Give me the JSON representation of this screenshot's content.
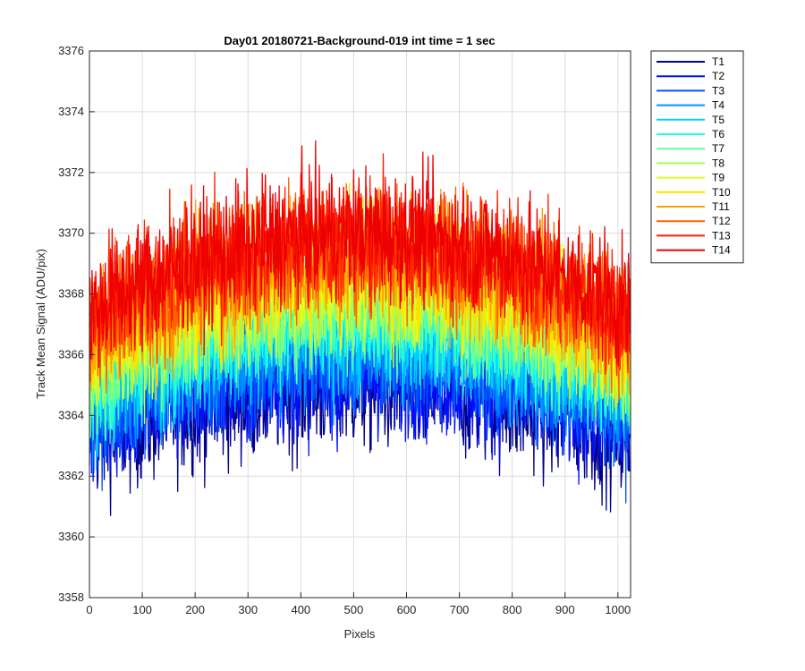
{
  "chart_data": {
    "type": "line",
    "title": "Day01 20180721-Background-019 int time = 1 sec",
    "xlabel": "Pixels",
    "ylabel": "Track Mean Signal (ADU/pix)",
    "xlim": [
      0,
      1024
    ],
    "ylim": [
      3358,
      3376
    ],
    "xticks": [
      0,
      100,
      200,
      300,
      400,
      500,
      600,
      700,
      800,
      900,
      1000
    ],
    "yticks": [
      3358,
      3360,
      3362,
      3364,
      3366,
      3368,
      3370,
      3372,
      3374,
      3376
    ],
    "grid": true,
    "legend_position": "outside-top-right",
    "x_sampling": {
      "start": 0,
      "end": 1023,
      "points": 1024
    },
    "series": [
      {
        "name": "T1",
        "color": "#00008f",
        "edge": 3363.2,
        "center": 3364.9,
        "noise": 1.5
      },
      {
        "name": "T2",
        "color": "#0010ff",
        "edge": 3363.6,
        "center": 3365.3,
        "noise": 1.4
      },
      {
        "name": "T3",
        "color": "#0050ff",
        "edge": 3364.0,
        "center": 3365.8,
        "noise": 1.4
      },
      {
        "name": "T4",
        "color": "#0090ff",
        "edge": 3364.4,
        "center": 3366.3,
        "noise": 1.4
      },
      {
        "name": "T5",
        "color": "#00d0ff",
        "edge": 3364.8,
        "center": 3366.8,
        "noise": 1.4
      },
      {
        "name": "T6",
        "color": "#20ffdf",
        "edge": 3365.1,
        "center": 3367.2,
        "noise": 1.4
      },
      {
        "name": "T7",
        "color": "#60ff9f",
        "edge": 3365.4,
        "center": 3367.6,
        "noise": 1.4
      },
      {
        "name": "T8",
        "color": "#9fff60",
        "edge": 3365.7,
        "center": 3368.0,
        "noise": 1.4
      },
      {
        "name": "T9",
        "color": "#dfff20",
        "edge": 3366.0,
        "center": 3368.4,
        "noise": 1.5
      },
      {
        "name": "T10",
        "color": "#ffe000",
        "edge": 3366.3,
        "center": 3368.8,
        "noise": 1.5
      },
      {
        "name": "T11",
        "color": "#ffa000",
        "edge": 3366.6,
        "center": 3369.2,
        "noise": 1.5
      },
      {
        "name": "T12",
        "color": "#ff6000",
        "edge": 3366.9,
        "center": 3369.5,
        "noise": 1.5
      },
      {
        "name": "T13",
        "color": "#ff2000",
        "edge": 3367.2,
        "center": 3369.8,
        "noise": 1.5
      },
      {
        "name": "T14",
        "color": "#ee0000",
        "edge": 3367.4,
        "center": 3370.0,
        "noise": 1.5
      }
    ]
  }
}
